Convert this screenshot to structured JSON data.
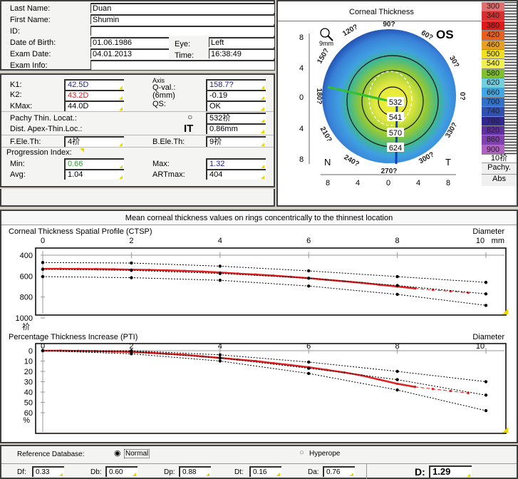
{
  "patient": {
    "last_name_label": "Last Name:",
    "last_name": "Duan",
    "first_name_label": "First Name:",
    "first_name": "Shumin",
    "id_label": "ID:",
    "id": "",
    "dob_label": "Date of Birth:",
    "dob": "01.06.1986",
    "eye_label": "Eye:",
    "eye": "Left",
    "exam_date_label": "Exam Date:",
    "exam_date": "04.01.2013",
    "time_label": "Time:",
    "time": "16:38:49",
    "exam_info_label": "Exam Info:",
    "exam_info": ""
  },
  "keratometry": {
    "k1_label": "K1:",
    "k1": "42.5D",
    "k2_label": "K2:",
    "k2": "43.2D",
    "kmax_label": "KMax:",
    "kmax": "44.0D",
    "axis_label": "Axis",
    "axis": "158.7?",
    "qval_label": "Q-val.:",
    "qval_sub": "(6mm)",
    "qval": "-0.19",
    "qs_label": "QS:",
    "qs": "OK",
    "pachy_label": "Pachy Thin. Locat.:",
    "pachy": "532祄",
    "dist_label": "Dist. Apex-Thin.Loc.:",
    "dist": "0.86mm",
    "fele_label": "F.Ele.Th:",
    "fele": "4祄",
    "bele_label": "B.Ele.Th:",
    "bele": "9祄",
    "prog_label": "Progression Index:",
    "min_label": "Min:",
    "min": "0.66",
    "max_label": "Max:",
    "max": "1.32",
    "avg_label": "Avg:",
    "avg": "1.04",
    "art_label": "ARTmax:",
    "art": "404",
    "colors": {
      "k1": "#2020a0",
      "k2": "#d02020",
      "min": "#30a030",
      "max": "#2020a0"
    }
  },
  "map": {
    "title": "Corneal Thickness",
    "eye": "OS",
    "zoom": "9mm",
    "angles": [
      "90?",
      "60?",
      "30?",
      "0?",
      "330?",
      "300?",
      "270?",
      "240?",
      "210?",
      "180?",
      "150?",
      "120?"
    ],
    "nasal": "N",
    "temporal": "T",
    "axis_ticks": [
      "8",
      "4",
      "0",
      "4",
      "8"
    ],
    "values": [
      "532",
      "541",
      "570",
      "624"
    ],
    "scale": {
      "values": [
        "300",
        "340",
        "380",
        "420",
        "460",
        "500",
        "540",
        "580",
        "620",
        "660",
        "700",
        "740",
        "780",
        "820",
        "860",
        "900"
      ],
      "colors": [
        "#e07070",
        "#d83030",
        "#e01818",
        "#e86020",
        "#e8a020",
        "#f0e020",
        "#f0f050",
        "#80c030",
        "#70d0e0",
        "#40a8e8",
        "#3070c8",
        "#3050b0",
        "#302890",
        "#6030a0",
        "#8040b0",
        "#b060c0"
      ],
      "step": "10祄",
      "type": "Pachy.",
      "mode": "Abs"
    }
  },
  "profile_title": "Mean corneal thickness values on rings concentrically to the thinnest location",
  "chart_data": [
    {
      "type": "line",
      "title": "Corneal Thickness Spatial Profile (CTSP)",
      "xlabel": "Diameter",
      "xunit": "mm",
      "ylabel": "祄",
      "xlim": [
        0,
        10
      ],
      "ylim": [
        400,
        1000
      ],
      "y_inverted": true,
      "xticks": [
        "0",
        "2",
        "4",
        "6",
        "8",
        "10"
      ],
      "yticks": [
        "400",
        "600",
        "800",
        "1000"
      ],
      "series": [
        {
          "role": "patient",
          "color": "#e02020",
          "x": [
            0,
            0.4,
            0.8,
            1.2,
            1.6,
            2,
            2.4,
            2.8,
            3.2,
            3.6,
            4,
            4.4,
            4.8,
            5.2,
            5.6,
            6,
            6.4,
            6.8,
            7.2,
            7.6,
            8,
            8.4
          ],
          "y": [
            530,
            530,
            531,
            532,
            535,
            538,
            541,
            545,
            550,
            557,
            565,
            576,
            585,
            595,
            607,
            620,
            635,
            650,
            665,
            683,
            700,
            718
          ]
        },
        {
          "role": "patient-extrapolated",
          "color": "#e02020",
          "x": [
            8.4,
            8.8,
            9.2,
            9.6
          ],
          "y": [
            718,
            732,
            745,
            760
          ]
        },
        {
          "role": "normal-upper",
          "x": [
            0,
            2,
            4,
            6,
            8,
            10
          ],
          "y": [
            470,
            475,
            505,
            550,
            605,
            660
          ]
        },
        {
          "role": "normal-mean",
          "x": [
            0,
            2,
            4,
            6,
            8,
            10
          ],
          "y": [
            535,
            545,
            575,
            620,
            690,
            770
          ]
        },
        {
          "role": "normal-lower",
          "x": [
            0,
            2,
            4,
            6,
            8,
            10
          ],
          "y": [
            605,
            615,
            640,
            695,
            775,
            880
          ]
        }
      ]
    },
    {
      "type": "line",
      "title": "Percentage Thickness Increase (PTI)",
      "xlabel": "Diameter",
      "xunit": "mm",
      "ylabel": "%",
      "xlim": [
        0,
        10
      ],
      "ylim": [
        0,
        60
      ],
      "y_inverted": true,
      "xticks": [
        "0",
        "2",
        "4",
        "6",
        "8",
        "10"
      ],
      "yticks": [
        "0",
        "10",
        "20",
        "30",
        "40",
        "50",
        "60"
      ],
      "series": [
        {
          "role": "patient",
          "color": "#e02020",
          "x": [
            0,
            0.4,
            0.8,
            1.2,
            1.6,
            2,
            2.4,
            2.8,
            3.2,
            3.6,
            4,
            4.4,
            4.8,
            5.2,
            5.6,
            6,
            6.4,
            6.8,
            7.2,
            7.6,
            8,
            8.4
          ],
          "y": [
            0,
            0,
            0.2,
            0.4,
            0.8,
            1.2,
            2,
            3,
            4,
            5.5,
            7,
            8.5,
            10,
            12,
            14,
            16,
            18.5,
            21,
            24,
            28,
            32,
            35
          ]
        },
        {
          "role": "patient-extrapolated",
          "color": "#e02020",
          "x": [
            8.4,
            8.8,
            9.2,
            9.6
          ],
          "y": [
            35,
            37,
            39,
            41
          ]
        },
        {
          "role": "normal-upper",
          "x": [
            0,
            2,
            4,
            6,
            8,
            10
          ],
          "y": [
            0,
            0,
            4,
            11,
            20,
            30
          ]
        },
        {
          "role": "normal-mean",
          "x": [
            0,
            2,
            4,
            6,
            8,
            10
          ],
          "y": [
            0,
            1,
            7,
            17,
            28,
            43
          ]
        },
        {
          "role": "normal-lower",
          "x": [
            0,
            2,
            4,
            6,
            8,
            10
          ],
          "y": [
            0,
            3,
            10,
            22,
            38,
            58
          ]
        }
      ]
    }
  ],
  "reference": {
    "label": "Reference Database:",
    "options": [
      {
        "label": "Normal",
        "selected": true
      },
      {
        "label": "Hyperope",
        "selected": false
      }
    ]
  },
  "deviations": {
    "df_label": "Df:",
    "df": "0.33",
    "db_label": "Db:",
    "db": "0.60",
    "dp_label": "Dp:",
    "dp": "0.88",
    "dt_label": "Dt:",
    "dt": "0.16",
    "da_label": "Da:",
    "da": "0.76",
    "d_label": "D:",
    "d": "1.29"
  }
}
